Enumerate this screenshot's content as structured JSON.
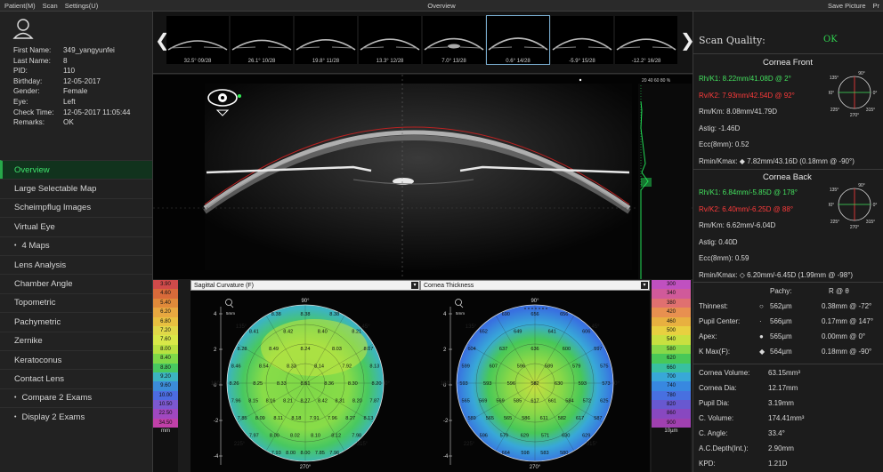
{
  "menu": {
    "items": [
      "Patient(M)",
      "Scan",
      "Settings(U)"
    ],
    "title": "Overview",
    "save_picture": "Save Picture",
    "extra": "Pr"
  },
  "patient": {
    "rows": [
      {
        "k": "First Name:",
        "v": "349_yangyunfei"
      },
      {
        "k": "Last Name:",
        "v": "8"
      },
      {
        "k": "PID:",
        "v": "110"
      },
      {
        "k": "Birthday:",
        "v": "12-05-2017"
      },
      {
        "k": "Gender:",
        "v": "Female"
      },
      {
        "k": "Eye:",
        "v": "Left"
      },
      {
        "k": "Check Time:",
        "v": "12-05-2017 11:05:44"
      },
      {
        "k": "Remarks:",
        "v": "OK"
      }
    ]
  },
  "nav": [
    {
      "label": "Overview",
      "active": true,
      "bullet": false
    },
    {
      "label": "Large Selectable Map",
      "active": false,
      "bullet": false
    },
    {
      "label": "Scheimpflug Images",
      "active": false,
      "bullet": false
    },
    {
      "label": "Virtual Eye",
      "active": false,
      "bullet": false
    },
    {
      "label": "4 Maps",
      "active": false,
      "bullet": true
    },
    {
      "label": "Lens Analysis",
      "active": false,
      "bullet": false
    },
    {
      "label": "Chamber Angle",
      "active": false,
      "bullet": false
    },
    {
      "label": "Topometric",
      "active": false,
      "bullet": false
    },
    {
      "label": "Pachymetric",
      "active": false,
      "bullet": false
    },
    {
      "label": "Zernike",
      "active": false,
      "bullet": false
    },
    {
      "label": "Keratoconus",
      "active": false,
      "bullet": false
    },
    {
      "label": "Contact Lens",
      "active": false,
      "bullet": false
    },
    {
      "label": "Compare 2 Exams",
      "active": false,
      "bullet": true
    },
    {
      "label": "Display 2 Exams",
      "active": false,
      "bullet": true
    }
  ],
  "thumbs": [
    {
      "label": "32.5°  09/28",
      "selected": false
    },
    {
      "label": "26.1°  10/28",
      "selected": false
    },
    {
      "label": "19.8°  11/28",
      "selected": false
    },
    {
      "label": "13.3°  12/28",
      "selected": false
    },
    {
      "label": "7.0°  13/28",
      "selected": false
    },
    {
      "label": "0.6°  14/28",
      "selected": true
    },
    {
      "label": "-5.9°  15/28",
      "selected": false
    },
    {
      "label": "-12.2° 16/28",
      "selected": false
    }
  ],
  "scheim": {
    "scale_labels": "20  40  60  80 %"
  },
  "maps": {
    "left_title": "Sagittal Curvature (F)",
    "right_title": "Cornea Thickness",
    "left_axis_unit": "5mm",
    "angle_labels": [
      "90°",
      "45°",
      "135°",
      "0°",
      "180°",
      "315°",
      "225°",
      "270°"
    ],
    "y_ticks": [
      "4",
      "2",
      "0",
      "-2",
      "-4"
    ],
    "sag_values": [
      "8.38",
      "8.38",
      "8.38",
      "8.41",
      "8.42",
      "8.40",
      "8.21",
      "8.28",
      "8.49",
      "8.24",
      "8.03",
      "8.07",
      "8.46",
      "8.54",
      "8.33",
      "8.14",
      "7.92",
      "8.13",
      "8.26",
      "8.25",
      "8.33",
      "8.51",
      "8.36",
      "8.30",
      "8.20",
      "7.96",
      "8.15",
      "8.16",
      "8.21",
      "8.27",
      "8.42",
      "8.31",
      "8.20",
      "7.87",
      "7.85",
      "8.09",
      "8.11",
      "8.18",
      "7.91",
      "7.96",
      "8.27",
      "8.13",
      "7.97",
      "8.00",
      "8.02",
      "8.10",
      "8.12",
      "7.98",
      "7.93",
      "8.00",
      "8.00",
      "7.85",
      "7.96"
    ],
    "pachy_values": [
      "690",
      "656",
      "656",
      "652",
      "649",
      "641",
      "606",
      "604",
      "637",
      "636",
      "600",
      "597",
      "599",
      "607",
      "596",
      "589",
      "579",
      "575",
      "593",
      "593",
      "596",
      "582",
      "630",
      "593",
      "573",
      "565",
      "569",
      "569",
      "585",
      "617",
      "661",
      "584",
      "572",
      "625",
      "589",
      "565",
      "565",
      "586",
      "611",
      "582",
      "617",
      "587",
      "596",
      "579",
      "629",
      "571",
      "630",
      "629",
      "664",
      "598",
      "583",
      "580"
    ],
    "sag_legend": [
      "3.90",
      "4.60",
      "5.40",
      "6.20",
      "6.80",
      "7.20",
      "7.60",
      "8.00",
      "8.40",
      "8.80",
      "9.20",
      "9.60",
      "10.00",
      "10.50",
      "22.50",
      "34.50"
    ],
    "pachy_legend": [
      "300",
      "340",
      "380",
      "420",
      "460",
      "500",
      "540",
      "580",
      "620",
      "660",
      "700",
      "740",
      "780",
      "820",
      "860",
      "900"
    ],
    "sag_unit": "mm",
    "pachy_unit": "10µm"
  },
  "right": {
    "scan_quality_label": "Scan Quality:",
    "scan_quality_value": "OK",
    "front_title": "Cornea Front",
    "front": [
      {
        "t": "Rh/K1:  8.22mm/41.08D @ 2°",
        "c": "grn"
      },
      {
        "t": "Rv/K2:  7.93mm/42.54D @ 92°",
        "c": "red"
      },
      {
        "t": "Rm/Km:  8.08mm/41.79D",
        "c": ""
      },
      {
        "t": "Astig:    -1.46D",
        "c": ""
      },
      {
        "t": "Ecc(8mm):    0.52",
        "c": ""
      },
      {
        "t": "Rmin/Kmax:  ◆ 7.82mm/43.16D (0.18mm @ -90°)",
        "c": ""
      }
    ],
    "back_title": "Cornea Back",
    "back": [
      {
        "t": "Rh/K1:  6.84mm/-5.85D @ 178°",
        "c": "grn"
      },
      {
        "t": "Rv/K2:  6.40mm/-6.25D @ 88°",
        "c": "red"
      },
      {
        "t": "Rm/Km:  6.62mm/-6.04D",
        "c": ""
      },
      {
        "t": "Astig:    0.40D",
        "c": ""
      },
      {
        "t": "Ecc(8mm):    0.59",
        "c": ""
      },
      {
        "t": "Rmin/Kmax:  ◇ 6.20mm/-6.45D (1.99mm @ -98°)",
        "c": ""
      }
    ],
    "compass": {
      "n": "90°",
      "e": "0°",
      "w": "180°",
      "ne": "45°",
      "nw": "135°",
      "s": "270°",
      "se": "315°",
      "sw": "225°"
    },
    "pachy_header": {
      "col1": "Pachy:",
      "col2": "R @ θ"
    },
    "pachy_rows": [
      {
        "k": "Thinnest:",
        "sym": "○",
        "v": "562µm",
        "r": "0.38mm @ -72°"
      },
      {
        "k": "Pupil Center:",
        "sym": "·",
        "v": "566µm",
        "r": "0.17mm @ 147°"
      },
      {
        "k": "Apex:",
        "sym": "●",
        "v": "565µm",
        "r": "0.00mm @ 0°"
      },
      {
        "k": "K Max(F):",
        "sym": "◆",
        "v": "564µm",
        "r": "0.18mm @ -90°"
      }
    ],
    "volume_rows": [
      {
        "k": "Cornea Volume:",
        "v": "63.15mm³"
      },
      {
        "k": "Cornea Dia:",
        "v": "12.17mm"
      },
      {
        "k": "Pupil Dia:",
        "v": "3.19mm"
      },
      {
        "k": "C. Volume:",
        "v": "174.41mm³"
      },
      {
        "k": "C. Angle:",
        "v": "33.4°"
      },
      {
        "k": "A.C.Depth(Int.):",
        "v": "2.90mm"
      },
      {
        "k": "KPD:",
        "v": "1.21D"
      }
    ]
  },
  "colors": {
    "accent": "#3fe26c",
    "red": "#ff3b3b",
    "ok": "#2fd24f"
  }
}
